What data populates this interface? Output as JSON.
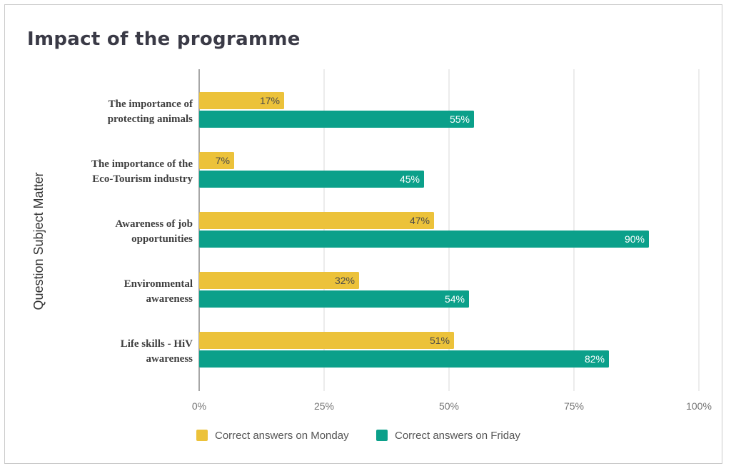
{
  "title": "Impact of the programme",
  "colors": {
    "monday": "#ECC23A",
    "friday": "#0BA08A",
    "grid": "#d9d9d9",
    "axis": "#888888"
  },
  "chart_data": {
    "type": "bar",
    "orientation": "horizontal",
    "title": "Impact of the programme",
    "ylabel": "Question Subject Matter",
    "xlabel": "",
    "xlim": [
      0,
      100
    ],
    "xticks": [
      "0%",
      "25%",
      "50%",
      "75%",
      "100%"
    ],
    "xtick_values": [
      0,
      25,
      50,
      75,
      100
    ],
    "grid": true,
    "legend_position": "bottom",
    "categories": [
      [
        "The importance of",
        "protecting animals"
      ],
      [
        "The importance of the",
        "Eco-Tourism industry"
      ],
      [
        "Awareness of job",
        "opportunities"
      ],
      [
        "Environmental",
        "awareness"
      ],
      [
        "Life skills - HiV",
        "awareness"
      ]
    ],
    "series": [
      {
        "name": "Correct answers on Monday",
        "color": "#ECC23A",
        "values": [
          17,
          7,
          47,
          32,
          51
        ]
      },
      {
        "name": "Correct answers on Friday",
        "color": "#0BA08A",
        "values": [
          55,
          45,
          90,
          54,
          82
        ]
      }
    ],
    "unit": "%"
  }
}
